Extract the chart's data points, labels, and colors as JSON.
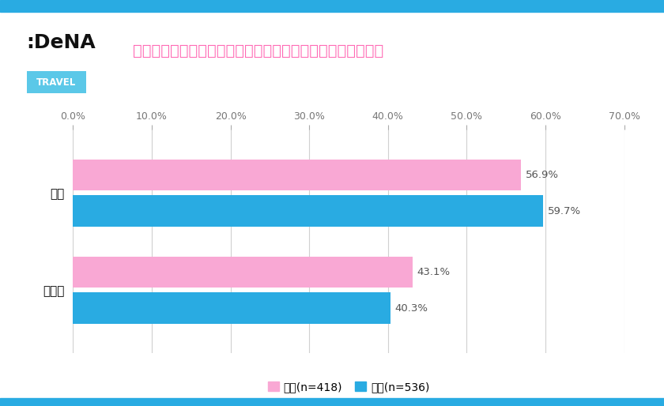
{
  "title": "パートナーと旅行をした際に惹れ直したことはありますか？",
  "title_color": "#ff69b4",
  "title_fontsize": 14,
  "categories_top": "はい",
  "categories_bottom": "いいえ",
  "female_values": [
    56.9,
    43.1
  ],
  "male_values": [
    59.7,
    40.3
  ],
  "female_color": "#f9a8d4",
  "male_color": "#29abe2",
  "xlim": [
    0,
    70
  ],
  "xticks": [
    0,
    10,
    20,
    30,
    40,
    50,
    60,
    70
  ],
  "xtick_labels": [
    "0.0%",
    "10.0%",
    "20.0%",
    "30.0%",
    "40.0%",
    "50.0%",
    "60.0%",
    "70.0%"
  ],
  "bar_height": 0.32,
  "bar_gap": 0.05,
  "female_label": "女性(n=418)",
  "male_label": "男性(n=536)",
  "background_color": "#ffffff",
  "grid_color": "#d0d0d0",
  "value_fontsize": 9.5,
  "value_color": "#555555",
  "ytick_fontsize": 11,
  "xtick_fontsize": 9,
  "legend_fontsize": 10,
  "dena_text": ":DeNA",
  "travel_text": "TRAVEL",
  "travel_bg": "#5bc8e8"
}
